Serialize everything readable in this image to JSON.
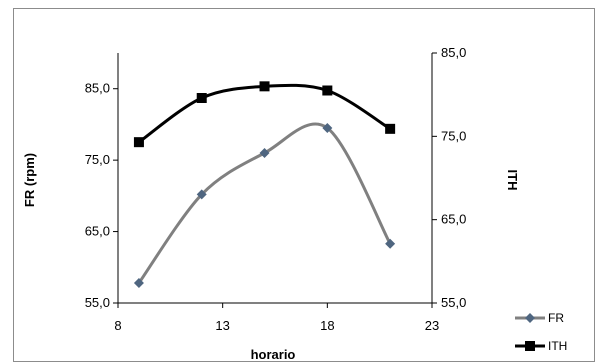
{
  "chart_data": {
    "type": "line",
    "xlabel": "horario",
    "ylabel_left": "FR (rpm)",
    "ylabel_right": "ITH",
    "xlim": [
      8,
      23
    ],
    "x_ticks": [
      "8",
      "13",
      "18",
      "23"
    ],
    "ylim_left": [
      55,
      90
    ],
    "y_ticks_left": [
      "55,0",
      "65,0",
      "75,0",
      "85,0"
    ],
    "ylim_right": [
      55,
      85
    ],
    "y_ticks_right": [
      "55,0",
      "65,0",
      "75,0",
      "85,0"
    ],
    "grid": false,
    "legend_position": "bottom-right",
    "series": [
      {
        "name": "FR",
        "axis": "left",
        "marker": "diamond",
        "color": "#808080",
        "marker_color": "#4f6680",
        "x": [
          9,
          12,
          15,
          18,
          21
        ],
        "values": [
          57.8,
          70.2,
          76.0,
          79.5,
          63.3
        ]
      },
      {
        "name": "ITH",
        "axis": "right",
        "marker": "square",
        "color": "#000000",
        "marker_color": "#000000",
        "x": [
          9,
          12,
          15,
          18,
          21
        ],
        "values": [
          74.3,
          79.6,
          81.0,
          80.5,
          75.9
        ]
      }
    ]
  }
}
